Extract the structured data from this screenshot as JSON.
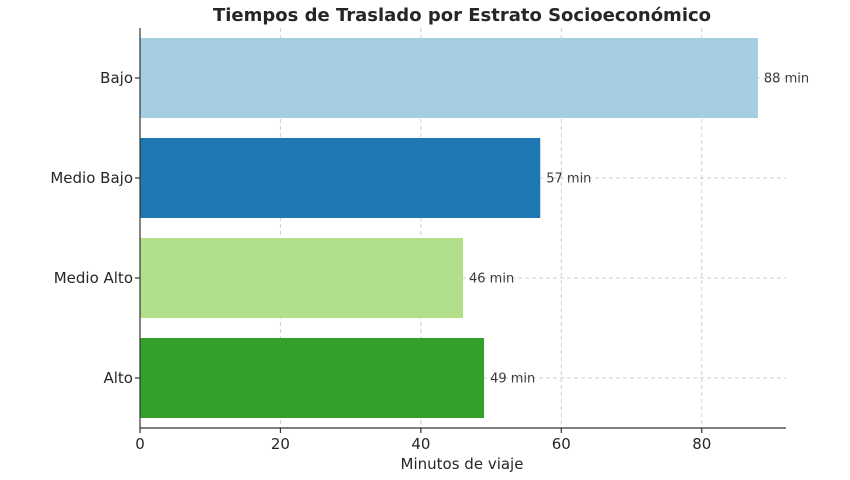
{
  "chart_data": {
    "type": "bar",
    "orientation": "horizontal",
    "title": "Tiempos de Traslado por Estrato Socioeconómico",
    "xlabel": "Minutos de viaje",
    "ylabel": "",
    "xlim": [
      0,
      92
    ],
    "xticks": [
      0,
      20,
      40,
      60,
      80
    ],
    "grid": true,
    "categories": [
      "Bajo",
      "Medio Bajo",
      "Medio Alto",
      "Alto"
    ],
    "values": [
      88,
      57,
      46,
      49
    ],
    "value_labels": [
      "88 min",
      "57 min",
      "46 min",
      "49 min"
    ],
    "colors": [
      "#a6cee3",
      "#1f78b4",
      "#b2df8a",
      "#33a02c"
    ]
  }
}
